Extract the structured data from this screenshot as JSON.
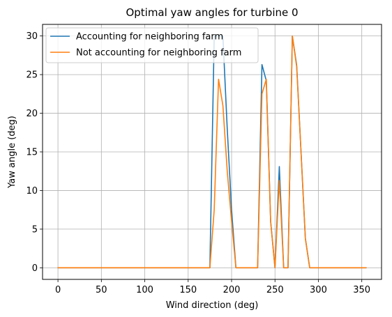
{
  "chart_data": {
    "type": "line",
    "title": "Optimal yaw angles for turbine 0",
    "xlabel": "Wind direction (deg)",
    "ylabel": "Yaw angle (deg)",
    "xlim": [
      -17.75,
      372.75
    ],
    "ylim": [
      -1.5,
      31.5
    ],
    "xticks": [
      0,
      50,
      100,
      150,
      200,
      250,
      300,
      350
    ],
    "yticks": [
      0,
      5,
      10,
      15,
      20,
      25,
      30
    ],
    "grid": true,
    "legend_position": "top-left",
    "series": [
      {
        "name": "Accounting for neighboring farm",
        "color": "#1f77b4",
        "x": [
          0,
          5,
          10,
          15,
          20,
          25,
          30,
          35,
          40,
          45,
          50,
          55,
          60,
          65,
          70,
          75,
          80,
          85,
          90,
          95,
          100,
          105,
          110,
          115,
          120,
          125,
          130,
          135,
          140,
          145,
          150,
          155,
          160,
          165,
          170,
          175,
          180,
          185,
          190,
          195,
          200,
          205,
          210,
          215,
          220,
          225,
          230,
          235,
          240,
          245,
          250,
          255,
          260,
          265,
          270,
          275,
          280,
          285,
          290,
          295,
          300,
          305,
          310,
          315,
          320,
          325,
          330,
          335,
          340,
          345,
          350,
          355
        ],
        "y": [
          0,
          0,
          0,
          0,
          0,
          0,
          0,
          0,
          0,
          0,
          0,
          0,
          0,
          0,
          0,
          0,
          0,
          0,
          0,
          0,
          0,
          0,
          0,
          0,
          0,
          0,
          0,
          0,
          0,
          0,
          0,
          0,
          0,
          0,
          0,
          0,
          30,
          30,
          30,
          18,
          7.5,
          0,
          0,
          0,
          0,
          0,
          0,
          26.3,
          24.2,
          6,
          0,
          13.1,
          0,
          0,
          30,
          26.2,
          15,
          3.8,
          0,
          0,
          0,
          0,
          0,
          0,
          0,
          0,
          0,
          0,
          0,
          0,
          0,
          0
        ]
      },
      {
        "name": "Not accounting for neighboring farm",
        "color": "#ff7f0e",
        "x": [
          0,
          5,
          10,
          15,
          20,
          25,
          30,
          35,
          40,
          45,
          50,
          55,
          60,
          65,
          70,
          75,
          80,
          85,
          90,
          95,
          100,
          105,
          110,
          115,
          120,
          125,
          130,
          135,
          140,
          145,
          150,
          155,
          160,
          165,
          170,
          175,
          180,
          185,
          190,
          195,
          200,
          205,
          210,
          215,
          220,
          225,
          230,
          235,
          240,
          245,
          250,
          255,
          260,
          265,
          270,
          275,
          280,
          285,
          290,
          295,
          300,
          305,
          310,
          315,
          320,
          325,
          330,
          335,
          340,
          345,
          350,
          355
        ],
        "y": [
          0,
          0,
          0,
          0,
          0,
          0,
          0,
          0,
          0,
          0,
          0,
          0,
          0,
          0,
          0,
          0,
          0,
          0,
          0,
          0,
          0,
          0,
          0,
          0,
          0,
          0,
          0,
          0,
          0,
          0,
          0,
          0,
          0,
          0,
          0,
          0,
          7.5,
          24.4,
          21,
          12.5,
          6,
          0,
          0,
          0,
          0,
          0,
          0,
          22.5,
          24.4,
          6,
          0,
          11.3,
          0,
          0,
          30,
          26,
          15,
          3.8,
          0,
          0,
          0,
          0,
          0,
          0,
          0,
          0,
          0,
          0,
          0,
          0,
          0,
          0
        ]
      }
    ]
  }
}
